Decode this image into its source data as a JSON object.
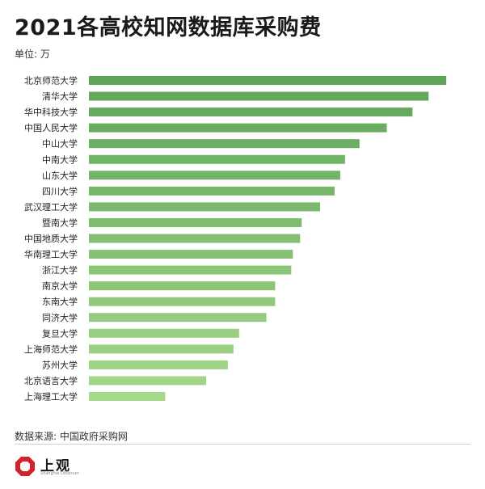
{
  "header": {
    "title": "2021各高校知网数据库采购费",
    "unit": "单位: 万"
  },
  "footer": {
    "source": "数据来源: 中国政府采购网",
    "logo_text": "上观",
    "logo_sub": "Shanghai Observer"
  },
  "colors": {
    "bar_dark": "#5ea55a",
    "bar_light": "#a6d88a"
  },
  "chart_data": {
    "type": "bar",
    "orientation": "horizontal",
    "categories": [
      "北京师范大学",
      "清华大学",
      "华中科技大学",
      "中国人民大学",
      "中山大学",
      "中南大学",
      "山东大学",
      "四川大学",
      "武汉理工大学",
      "暨南大学",
      "中国地质大学",
      "华南理工大学",
      "浙江大学",
      "南京大学",
      "东南大学",
      "同济大学",
      "复旦大学",
      "上海师范大学",
      "苏州大学",
      "北京语言大学",
      "上海理工大学"
    ],
    "values": [
      445,
      423,
      403,
      371,
      337,
      319,
      313,
      306,
      288,
      265,
      263,
      254,
      252,
      232,
      232,
      221,
      187,
      180,
      173,
      146,
      95
    ],
    "unit": "万",
    "xlim": [
      0,
      450
    ],
    "grid": false,
    "legend": "none"
  }
}
